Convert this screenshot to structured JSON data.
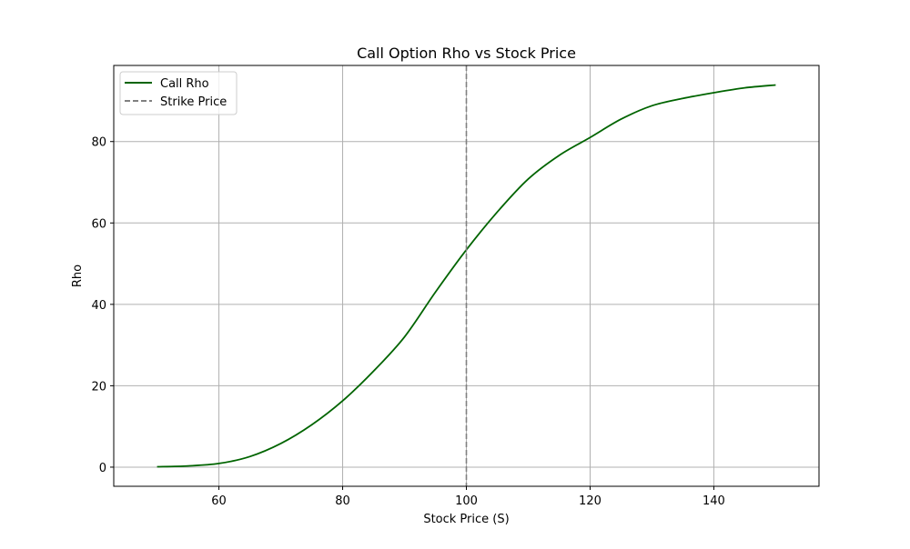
{
  "chart_data": {
    "type": "line",
    "title": "Call Option Rho vs Stock Price",
    "xlabel": "Stock Price (S)",
    "ylabel": "Rho",
    "xlim": [
      43,
      157
    ],
    "ylim": [
      -4.7,
      98.7
    ],
    "xticks": [
      60,
      80,
      100,
      120,
      140
    ],
    "yticks": [
      0,
      20,
      40,
      60,
      80
    ],
    "grid": true,
    "legend_position": "upper-left",
    "series": [
      {
        "name": "Call Rho",
        "color": "#006400",
        "style": "solid",
        "x": [
          50,
          55,
          60,
          65,
          70,
          75,
          80,
          85,
          90,
          95,
          100,
          105,
          110,
          115,
          120,
          125,
          130,
          135,
          140,
          145,
          150
        ],
        "y": [
          0.1,
          0.3,
          0.9,
          2.6,
          5.8,
          10.4,
          16.3,
          23.6,
          32.0,
          43.0,
          53.4,
          62.7,
          70.8,
          76.6,
          81.0,
          85.5,
          88.8,
          90.6,
          92.0,
          93.2,
          93.9
        ]
      },
      {
        "name": "Strike Price",
        "color": "#808080",
        "style": "dashed",
        "vertical_x": 100
      }
    ]
  }
}
